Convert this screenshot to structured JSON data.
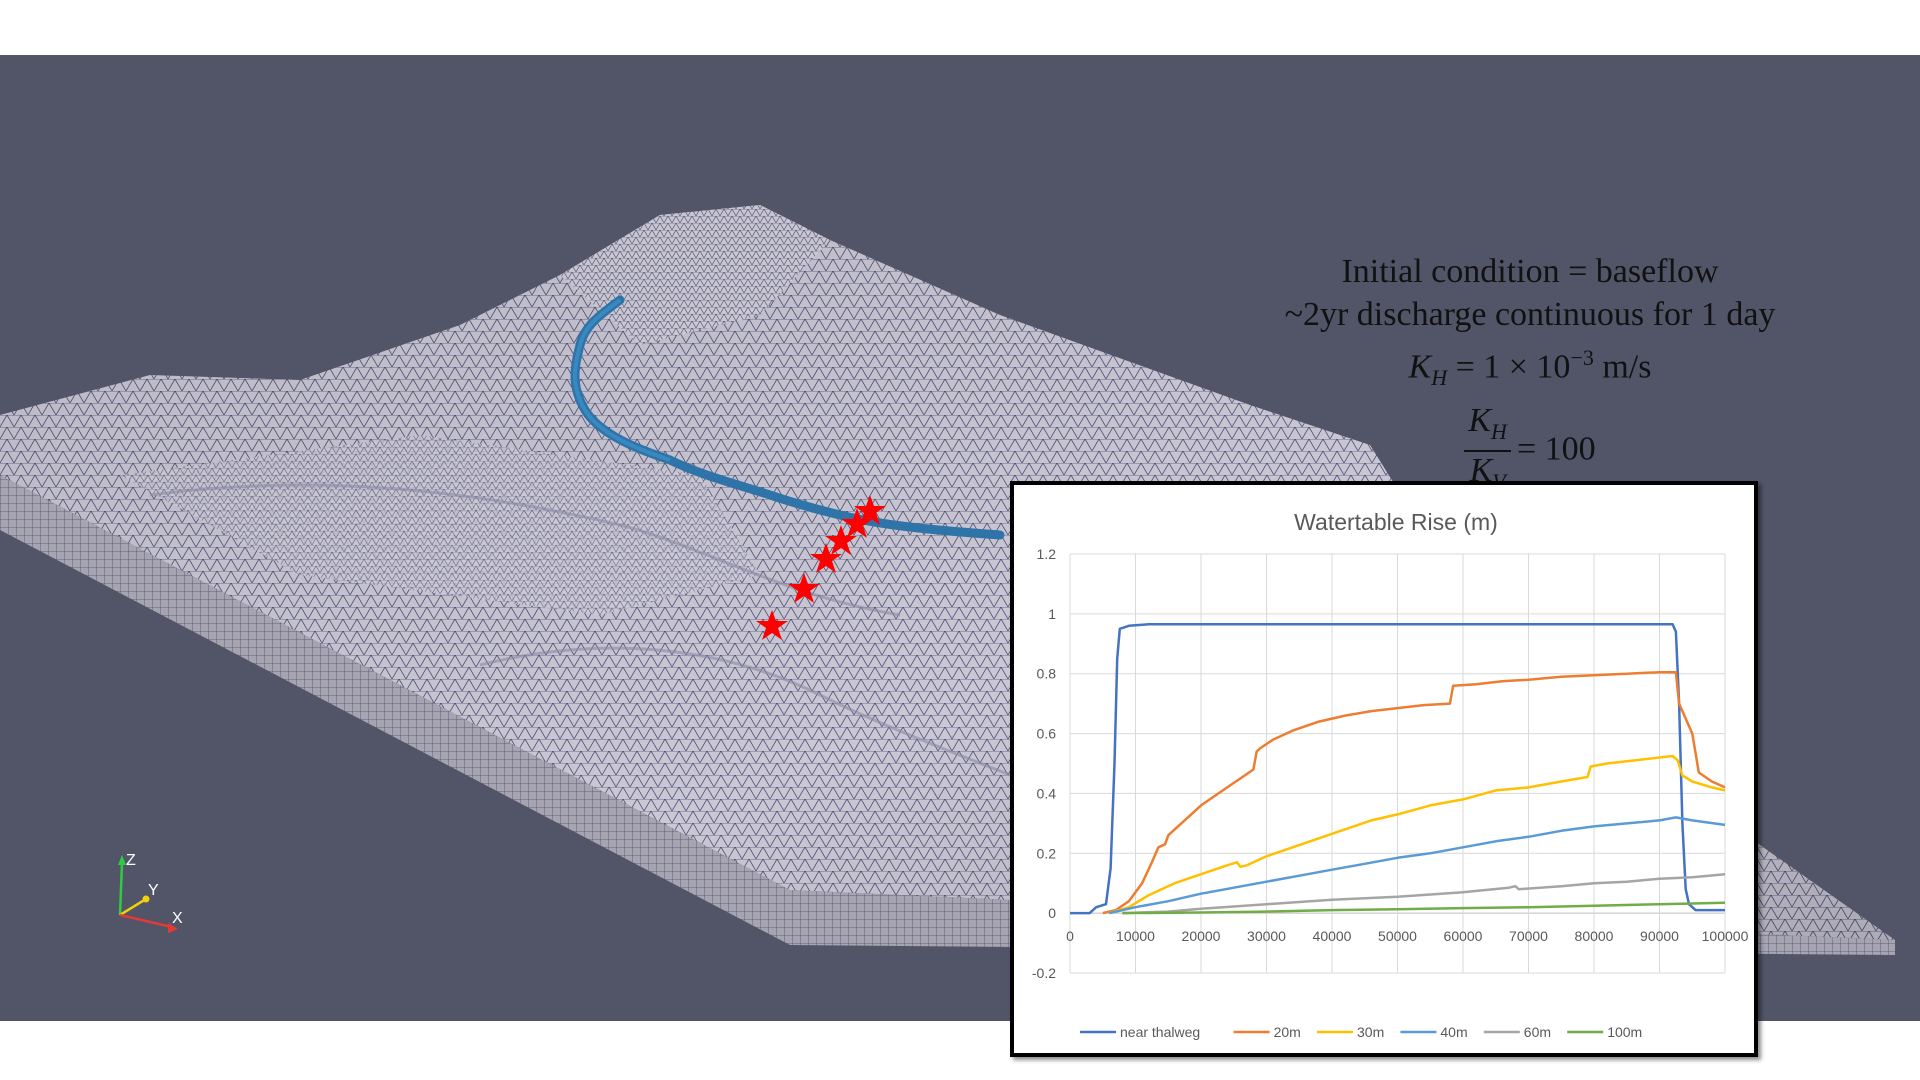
{
  "annotation": {
    "line1": "Initial condition = baseflow",
    "line2": "~2yr discharge continuous for 1 day",
    "kh_symbol": "K",
    "kh_sub": "H",
    "kh_value": "= 1 × 10",
    "kh_exp": "−3",
    "kh_unit": "m/s",
    "ratio_value": "= 100",
    "kv_sub": "V"
  },
  "axes_triad": {
    "z": "Z",
    "y": "Y",
    "x": "X"
  },
  "colors": {
    "viewport_bg": "#525568",
    "mesh_surface": "#c9c6d2",
    "river": "#2f74a8",
    "marker": "#ff0000"
  },
  "markers_count": 6,
  "chart_data": {
    "type": "line",
    "title": "Watertable Rise (m)",
    "xlabel": "",
    "ylabel": "",
    "xlim": [
      0,
      100000
    ],
    "ylim": [
      -0.2,
      1.2
    ],
    "xticks": [
      0,
      10000,
      20000,
      30000,
      40000,
      50000,
      60000,
      70000,
      80000,
      90000,
      100000
    ],
    "yticks": [
      -0.2,
      0,
      0.2,
      0.4,
      0.6,
      0.8,
      1,
      1.2
    ],
    "ytick_labels": [
      "-0.2",
      "0",
      "0.2",
      "0.4",
      "0.6",
      "0.8",
      "1",
      "1.2"
    ],
    "grid": true,
    "legend_position": "bottom",
    "series": [
      {
        "name": "near thalweg",
        "color": "#4472c4",
        "points": [
          [
            0,
            0
          ],
          [
            3000,
            0
          ],
          [
            4000,
            0.02
          ],
          [
            5500,
            0.03
          ],
          [
            6200,
            0.15
          ],
          [
            6800,
            0.5
          ],
          [
            7200,
            0.85
          ],
          [
            7600,
            0.95
          ],
          [
            9000,
            0.96
          ],
          [
            12000,
            0.965
          ],
          [
            50000,
            0.965
          ],
          [
            92000,
            0.965
          ],
          [
            92500,
            0.94
          ],
          [
            93000,
            0.7
          ],
          [
            93500,
            0.3
          ],
          [
            94000,
            0.08
          ],
          [
            94500,
            0.03
          ],
          [
            95500,
            0.01
          ],
          [
            100000,
            0.01
          ]
        ]
      },
      {
        "name": "20m",
        "color": "#ed7d31",
        "points": [
          [
            5000,
            0
          ],
          [
            7000,
            0.01
          ],
          [
            9000,
            0.04
          ],
          [
            11000,
            0.1
          ],
          [
            12500,
            0.17
          ],
          [
            13500,
            0.22
          ],
          [
            14500,
            0.23
          ],
          [
            15000,
            0.26
          ],
          [
            16000,
            0.28
          ],
          [
            18000,
            0.32
          ],
          [
            20000,
            0.36
          ],
          [
            22000,
            0.39
          ],
          [
            24000,
            0.42
          ],
          [
            26000,
            0.45
          ],
          [
            28000,
            0.48
          ],
          [
            28500,
            0.54
          ],
          [
            29000,
            0.55
          ],
          [
            31000,
            0.58
          ],
          [
            34000,
            0.61
          ],
          [
            38000,
            0.64
          ],
          [
            42000,
            0.66
          ],
          [
            46000,
            0.675
          ],
          [
            50000,
            0.685
          ],
          [
            54000,
            0.695
          ],
          [
            58000,
            0.7
          ],
          [
            58500,
            0.76
          ],
          [
            62000,
            0.765
          ],
          [
            66000,
            0.775
          ],
          [
            70000,
            0.78
          ],
          [
            75000,
            0.79
          ],
          [
            80000,
            0.795
          ],
          [
            85000,
            0.8
          ],
          [
            90000,
            0.805
          ],
          [
            92500,
            0.805
          ],
          [
            93000,
            0.7
          ],
          [
            94000,
            0.65
          ],
          [
            95000,
            0.6
          ],
          [
            96000,
            0.47
          ],
          [
            98000,
            0.44
          ],
          [
            100000,
            0.42
          ]
        ]
      },
      {
        "name": "30m",
        "color": "#ffc000",
        "points": [
          [
            6000,
            0
          ],
          [
            9000,
            0.02
          ],
          [
            12000,
            0.06
          ],
          [
            16000,
            0.1
          ],
          [
            20000,
            0.13
          ],
          [
            24000,
            0.16
          ],
          [
            25500,
            0.17
          ],
          [
            26000,
            0.155
          ],
          [
            27000,
            0.16
          ],
          [
            30000,
            0.19
          ],
          [
            34000,
            0.22
          ],
          [
            38000,
            0.25
          ],
          [
            42000,
            0.28
          ],
          [
            46000,
            0.31
          ],
          [
            50000,
            0.33
          ],
          [
            55000,
            0.36
          ],
          [
            60000,
            0.38
          ],
          [
            65000,
            0.41
          ],
          [
            70000,
            0.42
          ],
          [
            75000,
            0.44
          ],
          [
            79000,
            0.455
          ],
          [
            79500,
            0.49
          ],
          [
            82000,
            0.5
          ],
          [
            86000,
            0.51
          ],
          [
            90000,
            0.52
          ],
          [
            92000,
            0.525
          ],
          [
            92800,
            0.51
          ],
          [
            93500,
            0.46
          ],
          [
            95000,
            0.44
          ],
          [
            98000,
            0.42
          ],
          [
            100000,
            0.41
          ]
        ]
      },
      {
        "name": "40m",
        "color": "#5b9bd5",
        "points": [
          [
            6000,
            0
          ],
          [
            10000,
            0.02
          ],
          [
            15000,
            0.04
          ],
          [
            20000,
            0.065
          ],
          [
            25000,
            0.085
          ],
          [
            30000,
            0.105
          ],
          [
            35000,
            0.125
          ],
          [
            40000,
            0.145
          ],
          [
            45000,
            0.165
          ],
          [
            50000,
            0.185
          ],
          [
            55000,
            0.2
          ],
          [
            60000,
            0.22
          ],
          [
            65000,
            0.24
          ],
          [
            70000,
            0.255
          ],
          [
            75000,
            0.275
          ],
          [
            80000,
            0.29
          ],
          [
            85000,
            0.3
          ],
          [
            90000,
            0.31
          ],
          [
            92500,
            0.32
          ],
          [
            95000,
            0.31
          ],
          [
            100000,
            0.295
          ]
        ]
      },
      {
        "name": "60m",
        "color": "#a5a5a5",
        "points": [
          [
            8000,
            0
          ],
          [
            15000,
            0.005
          ],
          [
            20000,
            0.015
          ],
          [
            30000,
            0.03
          ],
          [
            40000,
            0.045
          ],
          [
            50000,
            0.055
          ],
          [
            60000,
            0.07
          ],
          [
            67000,
            0.085
          ],
          [
            68000,
            0.09
          ],
          [
            68500,
            0.08
          ],
          [
            75000,
            0.09
          ],
          [
            80000,
            0.1
          ],
          [
            85000,
            0.105
          ],
          [
            90000,
            0.115
          ],
          [
            95000,
            0.12
          ],
          [
            100000,
            0.13
          ]
        ]
      },
      {
        "name": "100m",
        "color": "#70ad47",
        "points": [
          [
            8000,
            0
          ],
          [
            20000,
            0.002
          ],
          [
            30000,
            0.005
          ],
          [
            40000,
            0.01
          ],
          [
            50000,
            0.013
          ],
          [
            60000,
            0.017
          ],
          [
            70000,
            0.02
          ],
          [
            80000,
            0.025
          ],
          [
            90000,
            0.03
          ],
          [
            100000,
            0.035
          ]
        ]
      }
    ]
  }
}
